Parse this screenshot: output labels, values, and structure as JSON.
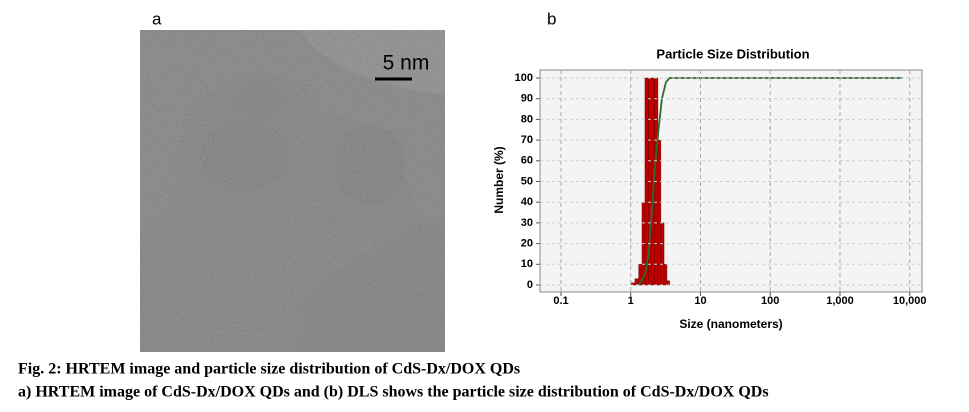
{
  "panels": {
    "a": {
      "label": "a",
      "scale_bar": "5 nm"
    },
    "b": {
      "label": "b"
    }
  },
  "chart_data": {
    "type": "histogram",
    "title": "Particle Size Distribution",
    "x_label": "Size (nanometers)",
    "y_label": "Number (%)",
    "log_x": true,
    "grid": true,
    "xlim": [
      0.05,
      15000
    ],
    "xticks": [
      0.1,
      1,
      10,
      100,
      {
        "value": 1000,
        "label": "1,000"
      },
      {
        "value": 10000,
        "label": "10,000"
      }
    ],
    "ylim": [
      0,
      100
    ],
    "yticks": [
      0,
      10,
      20,
      30,
      40,
      50,
      60,
      70,
      80,
      90,
      100
    ],
    "series": [
      {
        "type": "histogram",
        "color": "#c00000",
        "bins": [
          1.0,
          1.15,
          1.3,
          1.45,
          1.6,
          1.8,
          2.0,
          2.2,
          2.45,
          2.7,
          3.0,
          3.3,
          3.6
        ],
        "values": [
          1,
          3,
          10,
          40,
          100,
          100,
          100,
          100,
          70,
          30,
          10,
          2
        ]
      },
      {
        "type": "line",
        "color": "#2e6b2e",
        "x": [
          1.3,
          1.6,
          1.8,
          2.0,
          2.2,
          2.5,
          2.8,
          3.2,
          3.6,
          8000
        ],
        "values": [
          0,
          5,
          15,
          35,
          55,
          75,
          90,
          98,
          100,
          100
        ]
      }
    ]
  },
  "caption": {
    "title": "Fig. 2: HRTEM image and particle size distribution of CdS-Dx/DOX QDs",
    "text": "a) HRTEM image of CdS-Dx/DOX QDs and (b) DLS shows the particle size distribution of CdS-Dx/DOX QDs"
  }
}
